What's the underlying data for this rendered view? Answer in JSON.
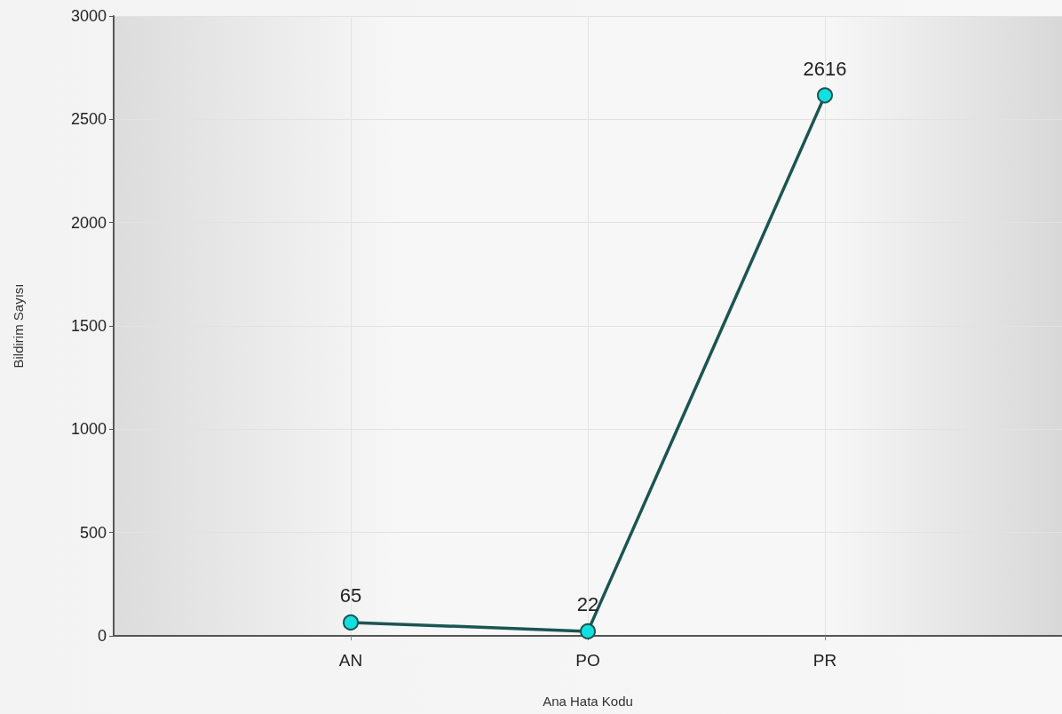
{
  "chart_data": {
    "type": "line",
    "xlabel": "Ana Hata Kodu",
    "ylabel": "Bildirim Sayısı",
    "categories": [
      "AN",
      "PO",
      "PR"
    ],
    "series": [
      {
        "color": "#1b5552",
        "values": [
          65,
          22,
          2616
        ]
      }
    ],
    "ylim": [
      0,
      3000
    ],
    "yticks": [
      0,
      500,
      1000,
      1500,
      2000,
      2500,
      3000
    ],
    "grid": true,
    "marker": "circle",
    "line_style": "solid",
    "data_labels": true
  }
}
